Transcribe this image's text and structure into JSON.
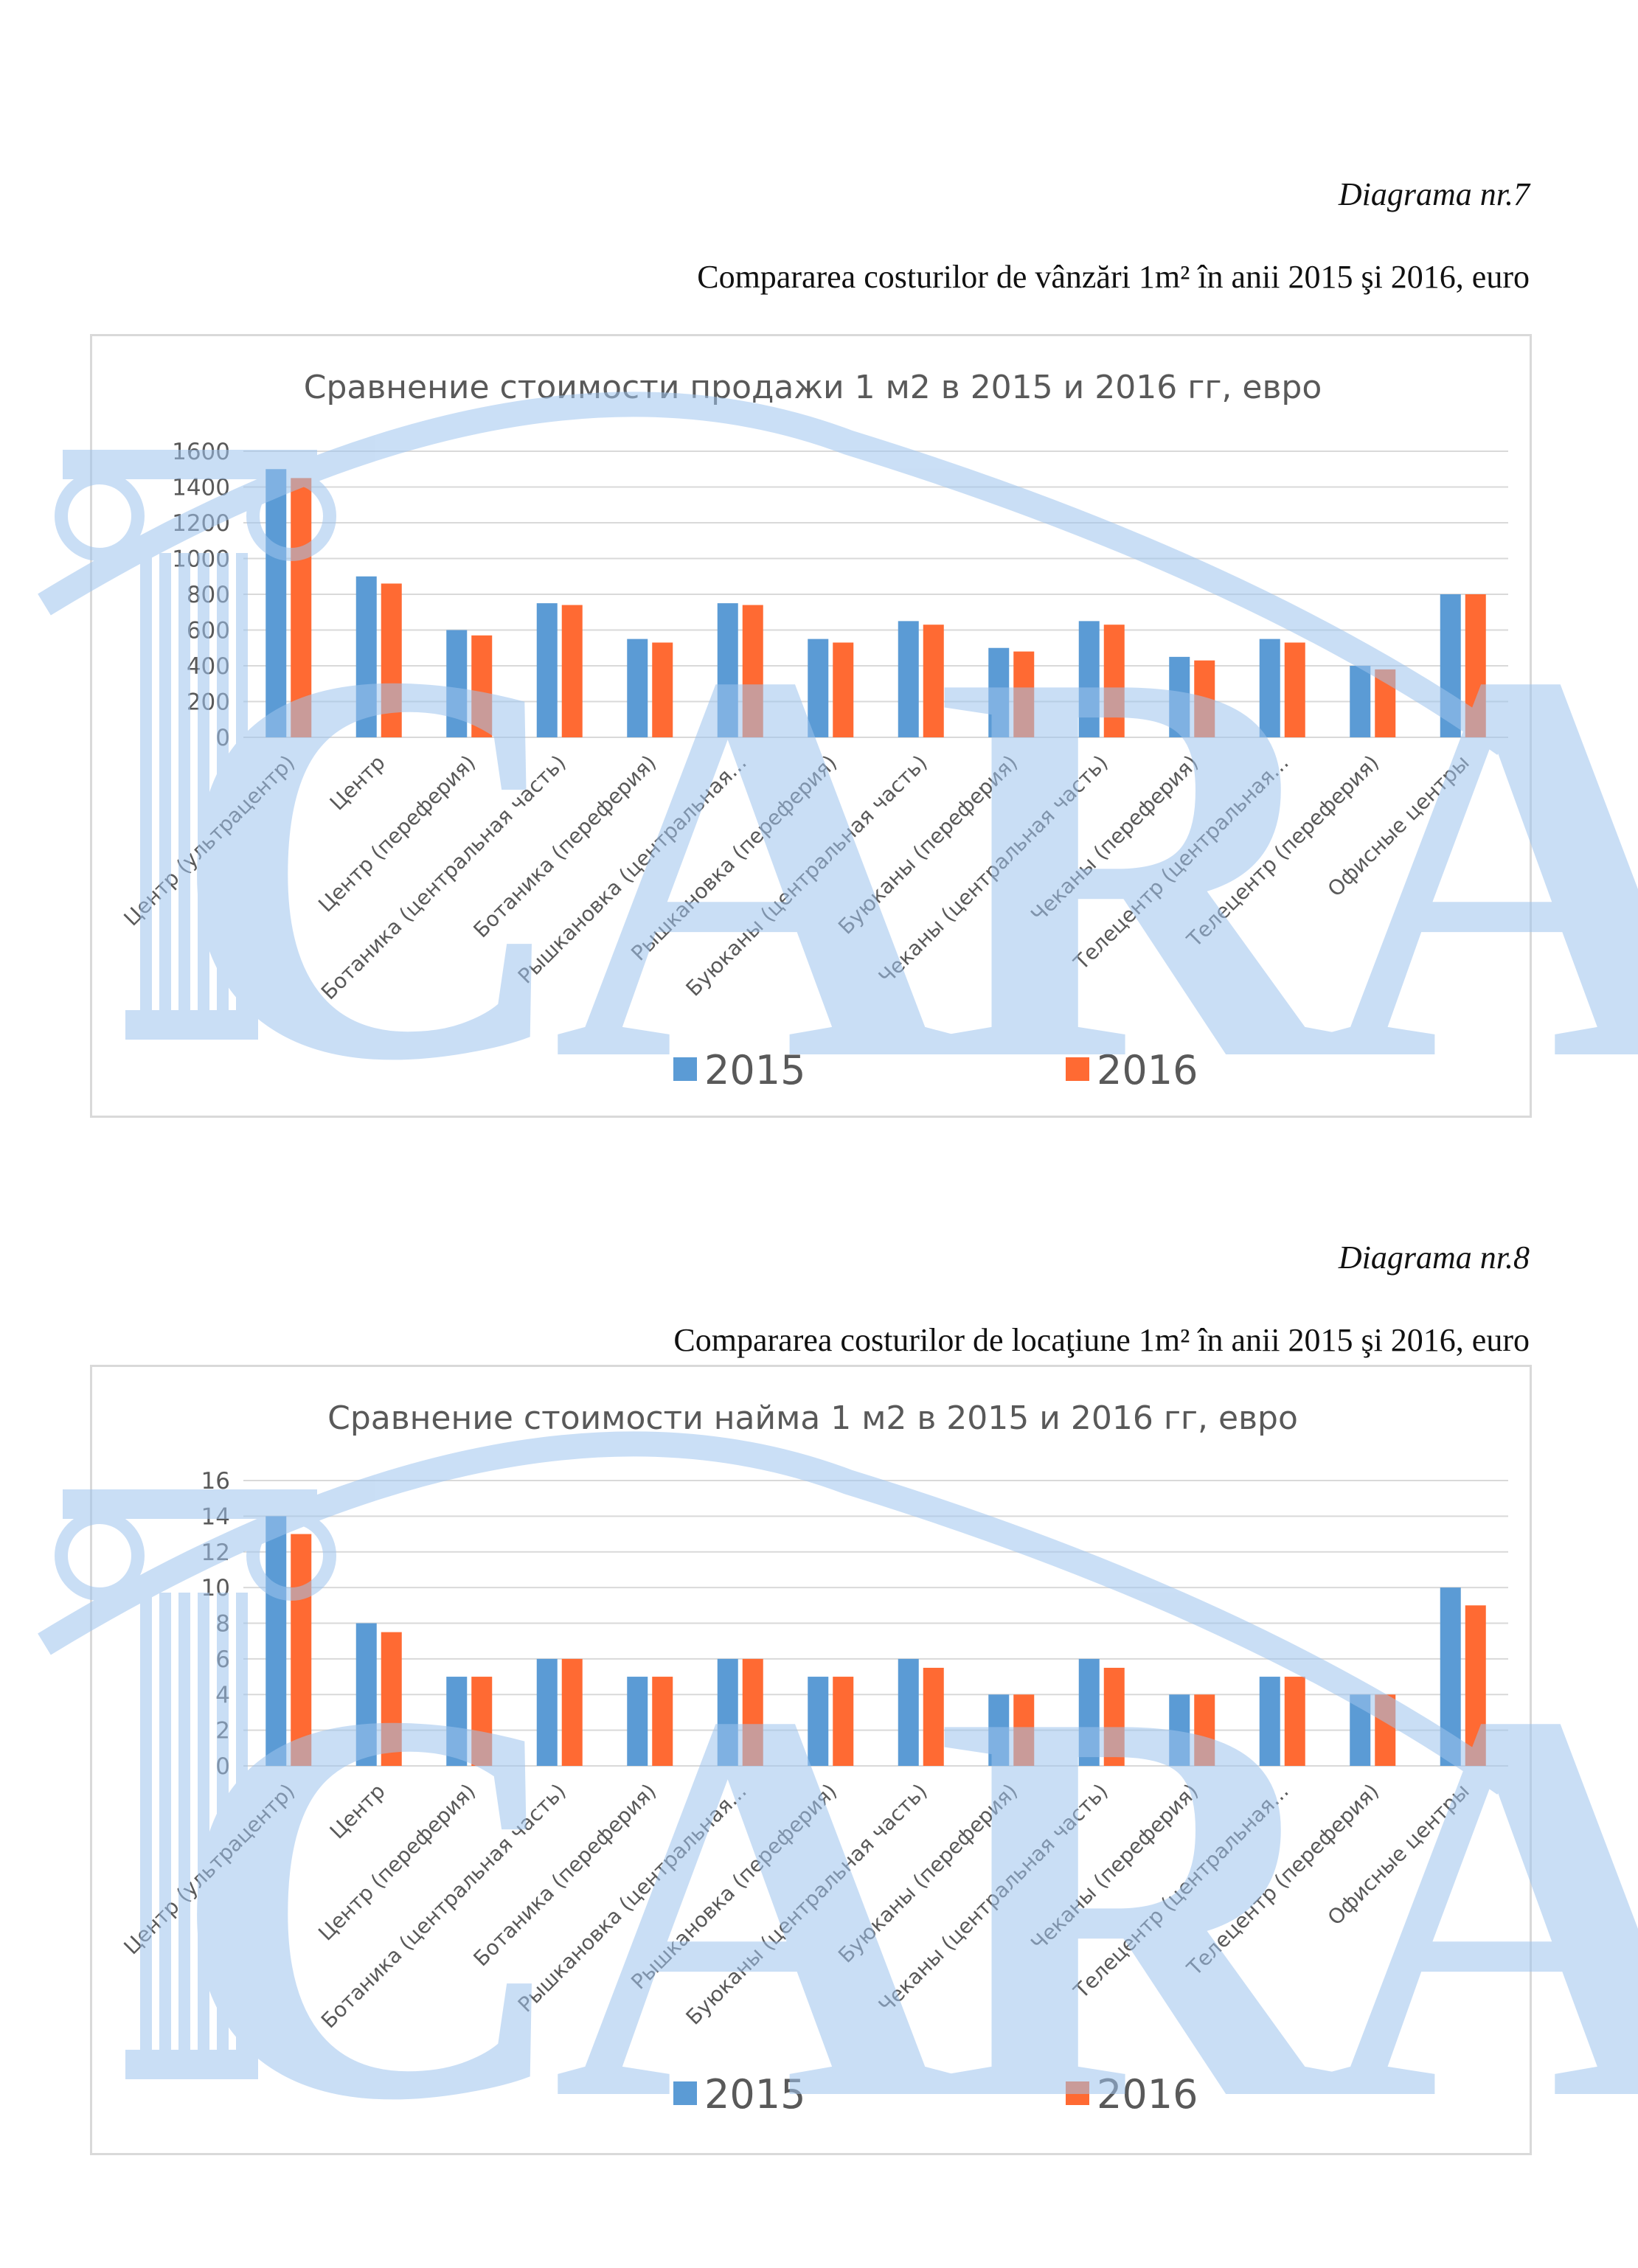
{
  "diagram7": {
    "label": "Diagrama nr.7",
    "caption": "Compararea costurilor de vânzări 1m² în anii 2015 şi 2016, euro"
  },
  "diagram8": {
    "label": "Diagrama nr.8",
    "caption": "Compararea costurilor de locaţiune 1m² în anii 2015 şi 2016, euro"
  },
  "watermark": {
    "text": "CARA"
  },
  "colors": {
    "s2015": "#5b9bd5",
    "s2016": "#ff6a33",
    "grid": "#d9d9d9",
    "text": "#595959"
  },
  "chart_data": [
    {
      "type": "bar",
      "title": "Сравнение стоимости продажи 1 м2 в 2015 и 2016 гг, евро",
      "categories": [
        "Центр (ультрацентр)",
        "Центр",
        "Центр (переферия)",
        "Ботаника (центральная часть)",
        "Ботаника (переферия)",
        "Рышкановка (центральная...",
        "Рышкановка (переферия)",
        "Буюканы (центральная часть)",
        "Буюканы (переферия)",
        "Чеканы (центральная часть)",
        "Чеканы (переферия)",
        "Телецентр (центральная...",
        "Телецентр (переферия)",
        "Офисные центры"
      ],
      "series": [
        {
          "name": "2015",
          "values": [
            1500,
            900,
            600,
            750,
            550,
            750,
            550,
            650,
            500,
            650,
            450,
            550,
            400,
            800
          ]
        },
        {
          "name": "2016",
          "values": [
            1450,
            860,
            570,
            740,
            530,
            740,
            530,
            630,
            480,
            630,
            430,
            530,
            380,
            800
          ]
        }
      ],
      "yticks": [
        "0",
        "200",
        "400",
        "600",
        "800",
        "1000",
        "1200",
        "1400",
        "1600"
      ],
      "ylim": [
        0,
        1600
      ],
      "grid": true,
      "legend": "bottom"
    },
    {
      "type": "bar",
      "title": "Сравнение стоимости найма 1 м2 в 2015 и 2016 гг, евро",
      "categories": [
        "Центр (ультрацентр)",
        "Центр",
        "Центр (переферия)",
        "Ботаника (центральная часть)",
        "Ботаника (переферия)",
        "Рышкановка (центральная...",
        "Рышкановка (переферия)",
        "Буюканы (центральная часть)",
        "Буюканы (переферия)",
        "Чеканы (центральная часть)",
        "Чеканы (переферия)",
        "Телецентр (центральная...",
        "Телецентр (переферия)",
        "Офисные центры"
      ],
      "series": [
        {
          "name": "2015",
          "values": [
            14,
            8,
            5,
            6,
            5,
            6,
            5,
            6,
            4,
            6,
            4,
            5,
            4,
            10
          ]
        },
        {
          "name": "2016",
          "values": [
            13,
            7.5,
            5,
            6,
            5,
            6,
            5,
            5.5,
            4,
            5.5,
            4,
            5,
            4,
            9
          ]
        }
      ],
      "yticks": [
        "0",
        "2",
        "4",
        "6",
        "8",
        "10",
        "12",
        "14",
        "16"
      ],
      "ylim": [
        0,
        16
      ],
      "grid": true,
      "legend": "bottom"
    }
  ]
}
